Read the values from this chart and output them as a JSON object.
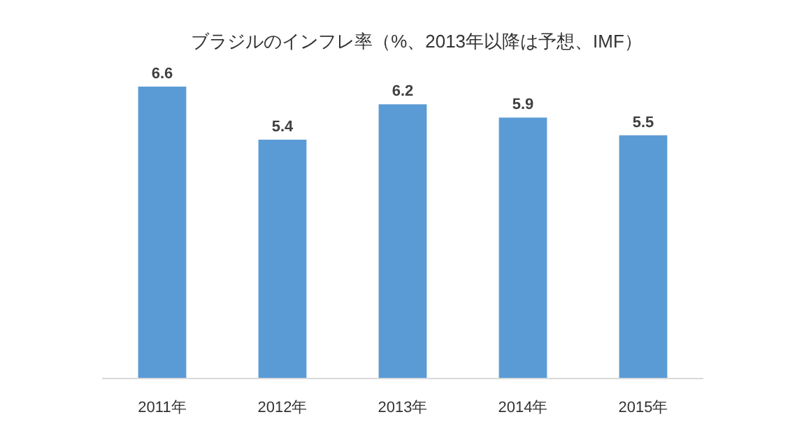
{
  "chart_data": {
    "type": "bar",
    "title": "ブラジルのインフレ率（%、2013年以降は予想、IMF）",
    "categories": [
      "2011年",
      "2012年",
      "2013年",
      "2014年",
      "2015年"
    ],
    "values": [
      6.6,
      5.4,
      6.2,
      5.9,
      5.5
    ],
    "color": "#5b9bd5",
    "data_labels": true
  }
}
